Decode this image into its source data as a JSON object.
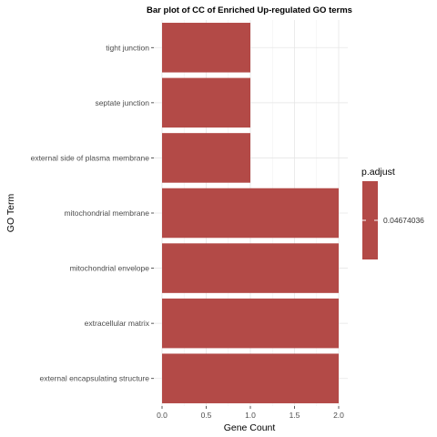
{
  "chart_data": {
    "type": "bar",
    "orientation": "horizontal",
    "title": "Bar plot of CC of Enriched Up-regulated GO terms",
    "xlabel": "Gene Count",
    "ylabel": "GO Term",
    "categories": [
      "tight junction",
      "septate junction",
      "external side of plasma membrane",
      "mitochondrial membrane",
      "mitochondrial envelope",
      "extracellular matrix",
      "external encapsulating structure"
    ],
    "values": [
      1,
      1,
      1,
      2,
      2,
      2,
      2
    ],
    "xlim": [
      0,
      2.0
    ],
    "xticks": [
      "0.0",
      "0.5",
      "1.0",
      "1.5",
      "2.0"
    ],
    "grid": true,
    "bar_color": "#B34A47",
    "legend": {
      "title": "p.adjust",
      "label": "0.04674036",
      "placement": "right",
      "color": "#B34A47"
    }
  }
}
